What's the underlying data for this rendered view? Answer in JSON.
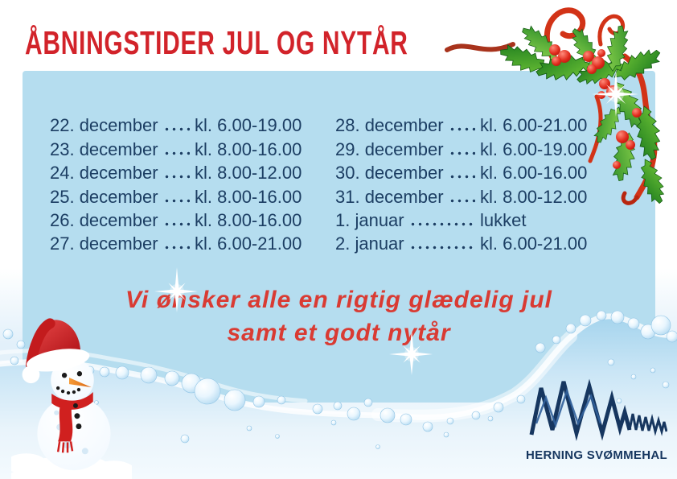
{
  "poster": {
    "title": "ÅBNINGSTIDER JUL OG NYTÅR",
    "message_line1": "Vi ønsker alle en rigtig glædelig jul",
    "message_line2": "samt et godt nytår",
    "logo_text": "HERNING SVØMMEHAL"
  },
  "schedule": {
    "left": [
      {
        "date": "22. december",
        "time": "kl. 6.00-19.00"
      },
      {
        "date": "23. december",
        "time": "kl. 8.00-16.00"
      },
      {
        "date": "24. december",
        "time": "kl. 8.00-12.00"
      },
      {
        "date": "25. december",
        "time": "kl. 8.00-16.00"
      },
      {
        "date": "26. december",
        "time": "kl. 8.00-16.00"
      },
      {
        "date": "27. december",
        "time": "kl. 6.00-21.00"
      }
    ],
    "right": [
      {
        "date": "28. december",
        "time": "kl. 6.00-21.00"
      },
      {
        "date": "29. december",
        "time": "kl. 6.00-19.00"
      },
      {
        "date": "30. december",
        "time": "kl. 6.00-16.00"
      },
      {
        "date": "31. december",
        "time": "kl. 8.00-12.00"
      },
      {
        "date": "1. januar",
        "time": "lukket"
      },
      {
        "date": "2. januar",
        "time": "kl. 6.00-21.00"
      }
    ]
  },
  "colors": {
    "title_red": "#d2232a",
    "script_red": "#d93b33",
    "text_navy": "#1c3e63",
    "panel_blue": "#b5ddef",
    "logo_navy": "#16365f",
    "holly_green": "#2e8f2a",
    "berry_red": "#cc1f16",
    "ribbon_red": "#d23317",
    "wave_blue": "#a5d4ed"
  }
}
